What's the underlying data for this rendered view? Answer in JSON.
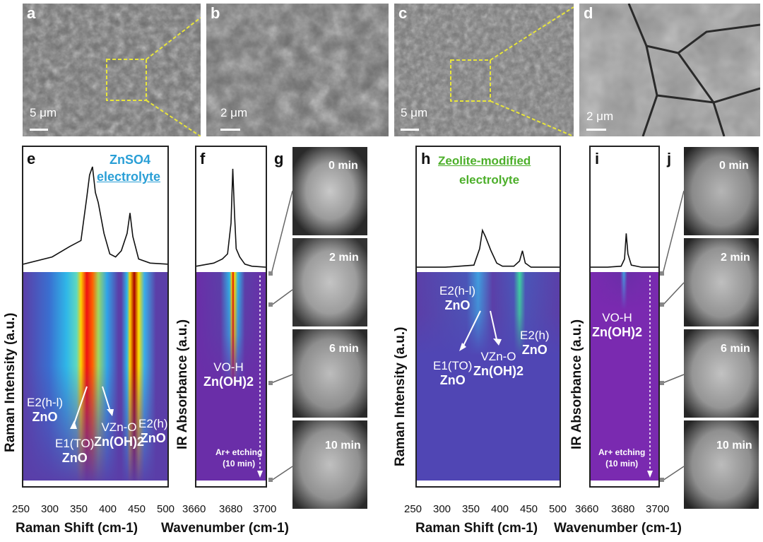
{
  "sem_panels": [
    {
      "letter": "a",
      "scale": "5 μm"
    },
    {
      "letter": "b",
      "scale": "2 μm"
    },
    {
      "letter": "c",
      "scale": "5 μm"
    },
    {
      "letter": "d",
      "scale": "2 μm"
    }
  ],
  "panel_e": {
    "letter": "e",
    "title_line1": "ZnSO4",
    "title_line2": "electrolyte",
    "ylabel": "Raman Intensity (a.u.)",
    "xlabel": "Raman Shift (cm-1)",
    "ann": {
      "e2hl": "E2(h-l)",
      "e2hl_sub": "ZnO",
      "e1to": "E1(TO)",
      "e1to_sub": "ZnO",
      "vzno": "VZn-O",
      "vzno_sub": "Zn(OH)2",
      "e2h": "E2(h)",
      "e2h_sub": "ZnO"
    }
  },
  "panel_f": {
    "letter": "f",
    "ylabel": "IR Absorbance (a.u.)",
    "xlabel": "Wavenumber (cm-1)",
    "voh": "VO-H",
    "voh_sub": "Zn(OH)2",
    "etch1": "Ar+ etching",
    "etch2": "(10 min)"
  },
  "panel_g": {
    "letter": "g",
    "times": [
      "0 min",
      "2 min",
      "6 min",
      "10 min"
    ]
  },
  "panel_h": {
    "letter": "h",
    "title_line1": "Zeolite-modified",
    "title_line2": "electrolyte",
    "ylabel": "Raman Intensity (a.u.)",
    "xlabel": "Raman Shift (cm-1)",
    "ann": {
      "e2hl": "E2(h-l)",
      "e2hl_sub": "ZnO",
      "e1to": "E1(TO)",
      "e1to_sub": "ZnO",
      "vzno": "VZn-O",
      "vzno_sub": "Zn(OH)2",
      "e2h": "E2(h)",
      "e2h_sub": "ZnO"
    }
  },
  "panel_i": {
    "letter": "i",
    "ylabel": "IR Absorbance (a.u.)",
    "xlabel": "Wavenumber (cm-1)",
    "voh": "VO-H",
    "voh_sub": "Zn(OH)2",
    "etch1": "Ar+ etching",
    "etch2": "(10 min)"
  },
  "panel_j": {
    "letter": "j",
    "times": [
      "0 min",
      "2 min",
      "6 min",
      "10 min"
    ]
  },
  "colors": {
    "title_e": "#2a9fd6",
    "title_h": "#4caf2a",
    "map_bg": "#5a3ea8"
  },
  "chart_data": [
    {
      "panel": "e",
      "type": "heatmap",
      "xlabel": "Raman Shift (cm-1)",
      "ylabel": "Raman Intensity (a.u.)",
      "xlim": [
        250,
        500
      ],
      "ticks": [
        "250",
        "300",
        "350",
        "400",
        "450",
        "500"
      ],
      "spectrum": {
        "x": [
          250,
          300,
          330,
          350,
          360,
          365,
          370,
          375,
          380,
          390,
          400,
          410,
          420,
          430,
          435,
          440,
          450,
          470,
          500
        ],
        "y": [
          0.05,
          0.12,
          0.22,
          0.28,
          0.7,
          0.92,
          1.0,
          0.75,
          0.65,
          0.35,
          0.15,
          0.12,
          0.18,
          0.35,
          0.55,
          0.32,
          0.1,
          0.06,
          0.05
        ]
      }
    },
    {
      "panel": "f",
      "type": "heatmap",
      "xlabel": "Wavenumber (cm-1)",
      "ylabel": "IR Absorbance (a.u.)",
      "xlim": [
        3660,
        3700
      ],
      "ticks": [
        "3660",
        "3680",
        "3700"
      ],
      "spectrum": {
        "x": [
          3660,
          3670,
          3675,
          3678,
          3680,
          3681,
          3682,
          3683,
          3685,
          3688,
          3692,
          3700
        ],
        "y": [
          0.03,
          0.06,
          0.1,
          0.15,
          0.45,
          0.98,
          0.55,
          0.2,
          0.12,
          0.05,
          0.03,
          0.02
        ]
      }
    },
    {
      "panel": "h",
      "type": "heatmap",
      "xlabel": "Raman Shift (cm-1)",
      "ylabel": "Raman Intensity (a.u.)",
      "xlim": [
        250,
        500
      ],
      "ticks": [
        "250",
        "300",
        "350",
        "400",
        "450",
        "500"
      ],
      "spectrum": {
        "x": [
          250,
          300,
          350,
          360,
          365,
          370,
          380,
          390,
          400,
          420,
          430,
          435,
          440,
          450,
          500
        ],
        "y": [
          0.02,
          0.02,
          0.04,
          0.2,
          0.38,
          0.32,
          0.18,
          0.06,
          0.03,
          0.03,
          0.08,
          0.18,
          0.06,
          0.02,
          0.02
        ]
      }
    },
    {
      "panel": "i",
      "type": "heatmap",
      "xlabel": "Wavenumber (cm-1)",
      "ylabel": "IR Absorbance (a.u.)",
      "xlim": [
        3660,
        3700
      ],
      "ticks": [
        "3660",
        "3680",
        "3700"
      ],
      "spectrum": {
        "x": [
          3660,
          3670,
          3678,
          3680,
          3681,
          3682,
          3684,
          3690,
          3700
        ],
        "y": [
          0.02,
          0.02,
          0.03,
          0.1,
          0.35,
          0.15,
          0.04,
          0.02,
          0.02
        ]
      }
    }
  ]
}
